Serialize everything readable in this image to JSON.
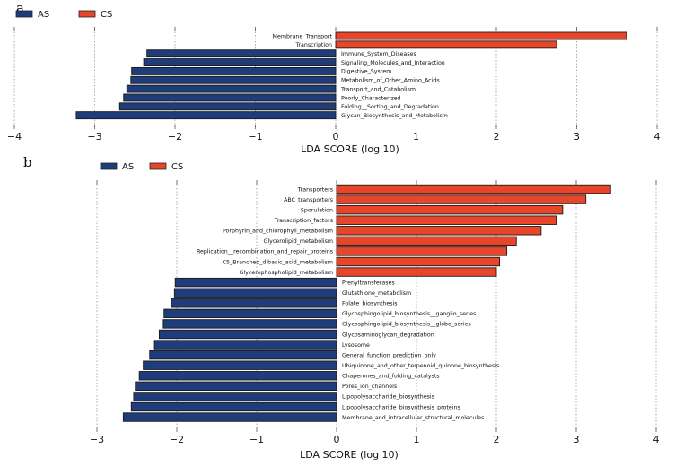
{
  "chart_data": [
    {
      "type": "bar",
      "orientation": "horizontal",
      "panel": "a",
      "xlabel": "LDA SCORE (log 10)",
      "xlim": [
        -4,
        4
      ],
      "xticks": [
        -4,
        -3,
        -2,
        -1,
        0,
        1,
        2,
        3,
        4
      ],
      "xtick_labels": [
        "−4",
        "−3",
        "−2",
        "−1",
        "0",
        "1",
        "2",
        "3",
        "4"
      ],
      "grid": "vertical dotted",
      "legend": {
        "placement": "top-left",
        "entries": [
          {
            "name": "AS",
            "color": "#1f3d7a"
          },
          {
            "name": "CS",
            "color": "#e8462a"
          }
        ]
      },
      "categories": [
        "Membrane_Transport",
        "Transcription",
        "Immune_System_Diseases",
        "Signaling_Molecules_and_Interaction",
        "Digestive_System",
        "Metabolism_of_Other_Amino_Acids",
        "Transport_and_Catabolism",
        "Poorly_Characterized",
        "Folding__Sorting_and_Degradation",
        "Glycan_Biosynthesis_and_Metabolism"
      ],
      "groups": [
        "CS",
        "CS",
        "AS",
        "AS",
        "AS",
        "AS",
        "AS",
        "AS",
        "AS",
        "AS"
      ],
      "values": [
        3.62,
        2.75,
        -2.35,
        -2.39,
        -2.54,
        -2.55,
        -2.6,
        -2.64,
        -2.69,
        -3.23
      ]
    },
    {
      "type": "bar",
      "orientation": "horizontal",
      "panel": "b",
      "xlabel": "LDA SCORE (log 10)",
      "xlim": [
        -3,
        4
      ],
      "xticks": [
        -3,
        -2,
        -1,
        0,
        1,
        2,
        3,
        4
      ],
      "xtick_labels": [
        "−3",
        "−2",
        "−1",
        "0",
        "1",
        "2",
        "3",
        "4"
      ],
      "grid": "vertical dotted",
      "legend": {
        "placement": "top-left",
        "entries": [
          {
            "name": "AS",
            "color": "#1f3d7a"
          },
          {
            "name": "CS",
            "color": "#e8462a"
          }
        ]
      },
      "categories": [
        "Transporters",
        "ABC_transporters",
        "Sporulation",
        "Transcription_factors",
        "Porphyrin_and_chlorophyll_metabolism",
        "Glycerolipid_metabolism",
        "Replication__recombination_and_repair_proteins",
        "C5_Branched_dibasic_acid_metabolism",
        "Glycerophospholipid_metabolism",
        "Prenyltransferases",
        "Glutathione_metabolism",
        "Folate_biosynthesis",
        "Glycosphingolipid_biosynthesis__ganglio_series",
        "Glycosphingolipid_biosynthesis__globo_series",
        "Glycosaminoglycan_degradation",
        "Lysosome",
        "General_function_prediction_only",
        "Ubiquinone_and_other_terpenoid_quinone_biosynthesis",
        "Chaperones_and_folding_catalysts",
        "Pores_ion_channels",
        "Lipopolysaccharide_biosynthesis",
        "Lipopolysaccharide_biosynthesis_proteins",
        "Membrane_and_intracellular_structural_molecules"
      ],
      "groups": [
        "CS",
        "CS",
        "CS",
        "CS",
        "CS",
        "CS",
        "CS",
        "CS",
        "CS",
        "AS",
        "AS",
        "AS",
        "AS",
        "AS",
        "AS",
        "AS",
        "AS",
        "AS",
        "AS",
        "AS",
        "AS",
        "AS",
        "AS"
      ],
      "values": [
        3.43,
        3.12,
        2.83,
        2.75,
        2.56,
        2.25,
        2.13,
        2.04,
        2.0,
        -2.02,
        -2.03,
        -2.07,
        -2.16,
        -2.17,
        -2.22,
        -2.28,
        -2.34,
        -2.42,
        -2.47,
        -2.52,
        -2.54,
        -2.57,
        -2.67
      ]
    }
  ],
  "panels": {
    "a": {
      "label": "a"
    },
    "b": {
      "label": "b"
    }
  },
  "colors": {
    "AS": "#1f3d7a",
    "CS": "#e8462a",
    "grid": "#888888"
  }
}
